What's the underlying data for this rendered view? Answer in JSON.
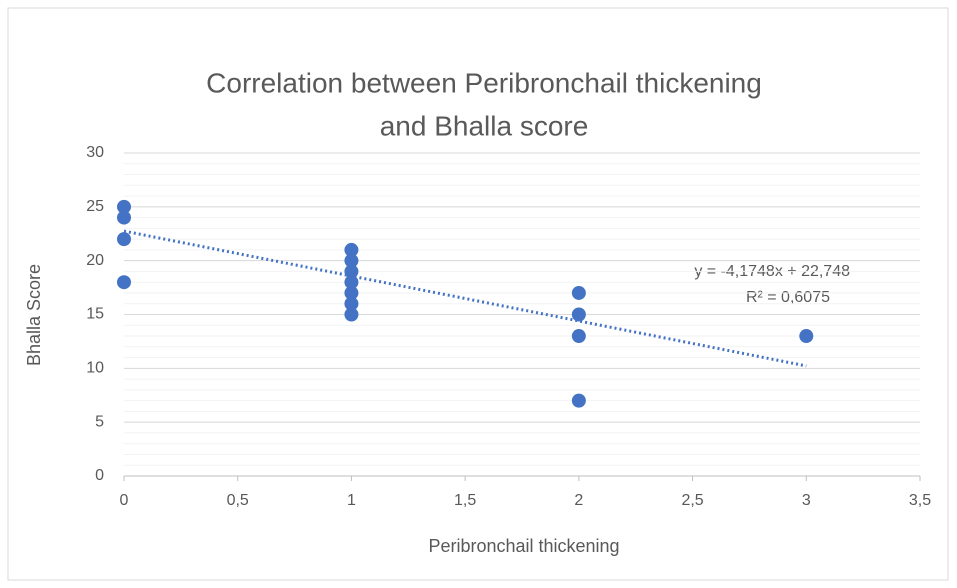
{
  "chart_data": {
    "type": "scatter",
    "title": [
      "Correlation between Peribronchail thickening",
      "and Bhalla score"
    ],
    "x_label": "Peribronchail thickening",
    "y_label": "Bhalla Score",
    "series": [
      {
        "name": "Bhalla Score",
        "color": "#4472c4",
        "x": [
          0,
          0,
          0,
          0,
          1,
          1,
          1,
          1,
          1,
          1,
          1,
          2,
          2,
          2,
          2,
          3
        ],
        "values": [
          25,
          24,
          22,
          18,
          21,
          20,
          19,
          18,
          17,
          16,
          15,
          17,
          15,
          13,
          7,
          13
        ]
      }
    ],
    "trendline": {
      "slope": -4.1748,
      "intercept": 22.748,
      "style": "dotted",
      "equation": "y = -4,1748x + 22,748",
      "r_squared": "R² = 0,6075"
    },
    "xlim": [
      0,
      3.5
    ],
    "xticks": [
      0,
      {
        "value": 0.5,
        "label": "0,5"
      },
      1,
      {
        "value": 1.5,
        "label": "1,5"
      },
      2,
      {
        "value": 2.5,
        "label": "2,5"
      },
      3,
      {
        "value": 3.5,
        "label": "3,5"
      }
    ],
    "ylim": [
      0,
      30
    ],
    "yticks": [
      0,
      5,
      10,
      15,
      20,
      25,
      30
    ],
    "grid": true,
    "minor_grid_step": 1
  }
}
